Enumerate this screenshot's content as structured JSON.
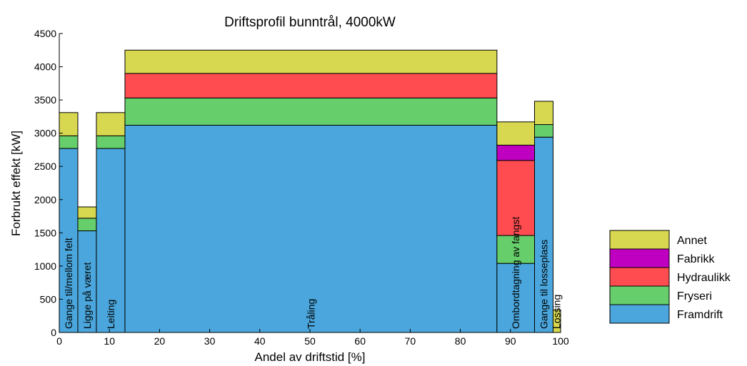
{
  "chart_data": {
    "type": "bar",
    "subtype": "variable-width-stacked",
    "title": "Driftsprofil bunntrål, 4000kW",
    "xlabel": "Andel av driftstid [%]",
    "ylabel": "Forbrukt effekt [kW]",
    "xlim": [
      0,
      100
    ],
    "ylim": [
      0,
      4500
    ],
    "xticks": [
      "0",
      "10",
      "20",
      "30",
      "40",
      "50",
      "60",
      "70",
      "80",
      "90",
      "100"
    ],
    "yticks": [
      "0",
      "500",
      "1000",
      "1500",
      "2000",
      "2500",
      "3000",
      "3500",
      "4000",
      "4500"
    ],
    "grid": false,
    "legend_position": "right",
    "series": [
      {
        "name": "Framdrift",
        "color": "#4aa6dc"
      },
      {
        "name": "Fryseri",
        "color": "#66ce6a"
      },
      {
        "name": "Hydraulikk",
        "color": "#ff4c50"
      },
      {
        "name": "Fabrikk",
        "color": "#c000c0"
      },
      {
        "name": "Annet",
        "color": "#d8d850"
      }
    ],
    "segments": [
      {
        "label": "Gange til/mellom felt",
        "x_start": 0,
        "x_end": 3.7,
        "values": {
          "Framdrift": 2770,
          "Fryseri": 190,
          "Hydraulikk": 0,
          "Fabrikk": 0,
          "Annet": 350
        }
      },
      {
        "label": "Ligge på været",
        "x_start": 3.7,
        "x_end": 7.4,
        "values": {
          "Framdrift": 1530,
          "Fryseri": 190,
          "Hydraulikk": 0,
          "Fabrikk": 0,
          "Annet": 170
        }
      },
      {
        "label": "Leiting",
        "x_start": 7.4,
        "x_end": 13.1,
        "values": {
          "Framdrift": 2770,
          "Fryseri": 190,
          "Hydraulikk": 0,
          "Fabrikk": 0,
          "Annet": 350
        }
      },
      {
        "label": "Tråling",
        "x_start": 13.1,
        "x_end": 87.3,
        "values": {
          "Framdrift": 3120,
          "Fryseri": 410,
          "Hydraulikk": 370,
          "Fabrikk": 0,
          "Annet": 350
        }
      },
      {
        "label": "Ombordtagning av fangst",
        "x_start": 87.3,
        "x_end": 94.8,
        "values": {
          "Framdrift": 1040,
          "Fryseri": 420,
          "Hydraulikk": 1130,
          "Fabrikk": 230,
          "Annet": 350
        }
      },
      {
        "label": "Gange til losseplass",
        "x_start": 94.8,
        "x_end": 98.5,
        "values": {
          "Framdrift": 2940,
          "Fryseri": 190,
          "Hydraulikk": 0,
          "Fabrikk": 0,
          "Annet": 350
        }
      },
      {
        "label": "Lossing",
        "x_start": 98.5,
        "x_end": 100,
        "values": {
          "Framdrift": 0,
          "Fryseri": 0,
          "Hydraulikk": 0,
          "Fabrikk": 0,
          "Annet": 340
        }
      }
    ]
  }
}
